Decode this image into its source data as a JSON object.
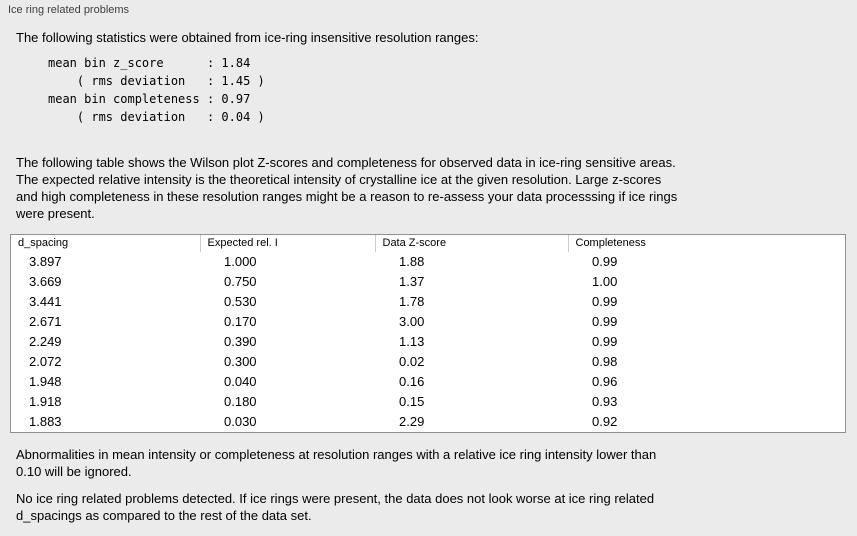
{
  "panel": {
    "title": "Ice ring related problems"
  },
  "intro": "The following statistics were obtained from ice-ring insensitive resolution ranges:",
  "stats_text": "mean bin z_score      : 1.84\n    ( rms deviation   : 1.45 )\nmean bin completeness : 0.97\n    ( rms deviation   : 0.04 )",
  "table_description": "The following table shows the Wilson plot Z-scores and completeness for observed data in ice-ring sensitive areas.\nThe expected relative intensity is the theoretical intensity of crystalline ice at the given resolution. Large z-scores\nand high completeness in these resolution ranges might be a reason to re-assess your data processsing if ice rings\nwere present.",
  "table": {
    "columns": [
      "d_spacing",
      "Expected rel. I",
      "Data Z-score",
      "Completeness"
    ],
    "rows": [
      [
        "3.897",
        "1.000",
        "1.88",
        "0.99"
      ],
      [
        "3.669",
        "0.750",
        "1.37",
        "1.00"
      ],
      [
        "3.441",
        "0.530",
        "1.78",
        "0.99"
      ],
      [
        "2.671",
        "0.170",
        "3.00",
        "0.99"
      ],
      [
        "2.249",
        "0.390",
        "1.13",
        "0.99"
      ],
      [
        "2.072",
        "0.300",
        "0.02",
        "0.98"
      ],
      [
        "1.948",
        "0.040",
        "0.16",
        "0.96"
      ],
      [
        "1.918",
        "0.180",
        "0.15",
        "0.93"
      ],
      [
        "1.883",
        "0.030",
        "2.29",
        "0.92"
      ]
    ]
  },
  "ignore_note": "Abnormalities in mean intensity or completeness at resolution ranges with a relative ice ring intensity lower than\n0.10 will be ignored.",
  "conclusion": "No ice ring related problems detected. If ice rings were present, the data does not look worse at ice ring related\nd_spacings as compared to the rest of the data set.",
  "colors": {
    "background": "#ebebeb",
    "table_background": "#ffffff",
    "table_border": "#8f8f8f"
  }
}
